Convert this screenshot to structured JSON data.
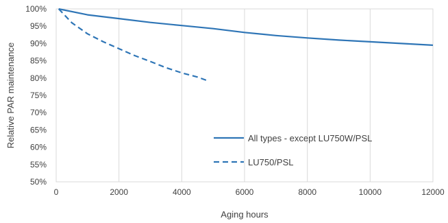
{
  "chart_data": {
    "type": "line",
    "title": "",
    "xlabel": "Aging hours",
    "ylabel": "Relative PAR maintenance",
    "xlim": [
      0,
      12000
    ],
    "ylim": [
      50,
      100
    ],
    "x_ticks": [
      "0",
      "2000",
      "4000",
      "6000",
      "8000",
      "10000",
      "12000"
    ],
    "y_ticks": [
      "50%",
      "55%",
      "60%",
      "65%",
      "70%",
      "75%",
      "80%",
      "85%",
      "90%",
      "95%",
      "100%"
    ],
    "grid": "vertical",
    "legend_position": "bottom-right",
    "series": [
      {
        "name": "All types - except LU750W/PSL",
        "color": "#2E75B6",
        "style": "solid",
        "x": [
          80,
          1000,
          2000,
          3000,
          4000,
          5000,
          6000,
          7000,
          8000,
          9000,
          10000,
          11000,
          12000
        ],
        "y": [
          100,
          98.3,
          97.2,
          96.1,
          95.2,
          94.3,
          93.2,
          92.3,
          91.6,
          91.0,
          90.5,
          90.0,
          89.5
        ]
      },
      {
        "name": "LU750/PSL",
        "color": "#2E75B6",
        "style": "dashed",
        "x": [
          80,
          500,
          1000,
          1500,
          2000,
          2500,
          3000,
          3500,
          4000,
          4500,
          4800
        ],
        "y": [
          100,
          96.0,
          92.8,
          90.5,
          88.5,
          86.5,
          84.8,
          83.0,
          81.5,
          80.3,
          79.3
        ]
      }
    ]
  }
}
